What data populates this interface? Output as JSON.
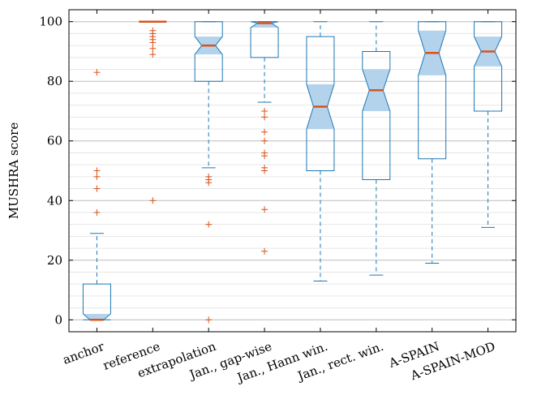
{
  "chart_data": {
    "type": "boxplot",
    "ylabel": "MUSHRA score",
    "xlabel": "",
    "ylim": [
      -4,
      104
    ],
    "y_ticks": [
      0,
      20,
      40,
      60,
      80,
      100
    ],
    "grid": "horizontal major and minor",
    "notched": true,
    "colors": {
      "box": "#1f77b4",
      "notch_fill": "#b3d3ec",
      "median": "#d95319",
      "outlier": "#d95319",
      "grid_major": "#bdbdbd",
      "grid_minor": "#e6e6e6",
      "axis": "#000000"
    },
    "boxes": [
      {
        "label": "anchor",
        "whisker_low": 0,
        "q1": 0,
        "notch_low": 0,
        "median": 0,
        "notch_high": 2,
        "q3": 12,
        "whisker_high": 29,
        "outliers": [
          83,
          50,
          48,
          44,
          36
        ]
      },
      {
        "label": "reference",
        "whisker_low": 100,
        "q1": 100,
        "notch_low": 100,
        "median": 100,
        "notch_high": 100,
        "q3": 100,
        "whisker_high": 100,
        "outliers": [
          97,
          96,
          95,
          94,
          93,
          91,
          89,
          40
        ]
      },
      {
        "label": "extrapolation",
        "whisker_low": 51,
        "q1": 80,
        "notch_low": 89,
        "median": 92,
        "notch_high": 95,
        "q3": 100,
        "whisker_high": 100,
        "outliers": [
          48,
          47,
          46,
          32,
          0
        ]
      },
      {
        "label": "Jan., gap-wise",
        "whisker_low": 73,
        "q1": 88,
        "notch_low": 98,
        "median": 99.5,
        "notch_high": 100,
        "q3": 100,
        "whisker_high": 100,
        "outliers": [
          70,
          68,
          63,
          60,
          56,
          55,
          51,
          50,
          37,
          23
        ]
      },
      {
        "label": "Jan., Hann win.",
        "whisker_low": 13,
        "q1": 50,
        "notch_low": 64,
        "median": 71.5,
        "notch_high": 79,
        "q3": 95,
        "whisker_high": 100,
        "outliers": []
      },
      {
        "label": "Jan., rect. win.",
        "whisker_low": 15,
        "q1": 47,
        "notch_low": 70,
        "median": 77,
        "notch_high": 84,
        "q3": 90,
        "whisker_high": 100,
        "outliers": []
      },
      {
        "label": "A-SPAIN",
        "whisker_low": 19,
        "q1": 54,
        "notch_low": 82,
        "median": 89.5,
        "notch_high": 97,
        "q3": 100,
        "whisker_high": 100,
        "outliers": []
      },
      {
        "label": "A-SPAIN-MOD",
        "whisker_low": 31,
        "q1": 70,
        "notch_low": 85,
        "median": 90,
        "notch_high": 95,
        "q3": 100,
        "whisker_high": 100,
        "outliers": []
      }
    ]
  }
}
